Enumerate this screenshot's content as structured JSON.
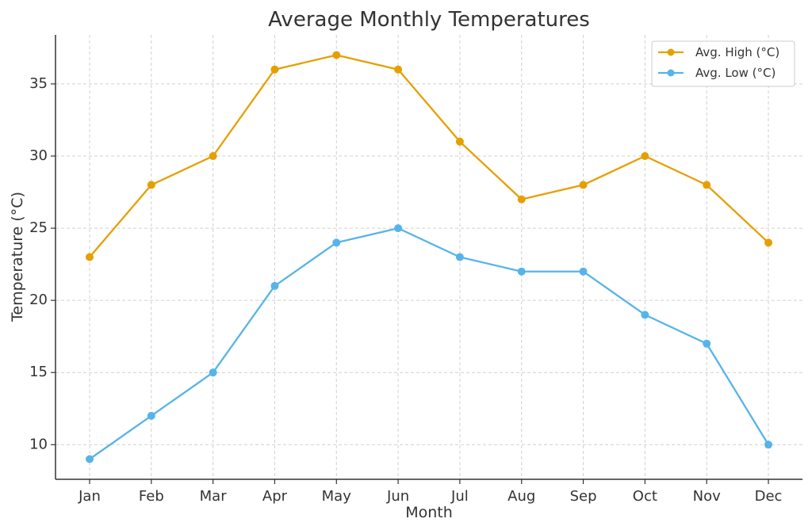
{
  "chart_data": {
    "type": "line",
    "title": "Average Monthly Temperatures",
    "xlabel": "Month",
    "ylabel": "Temperature (°C)",
    "categories": [
      "Jan",
      "Feb",
      "Mar",
      "Apr",
      "May",
      "Jun",
      "Jul",
      "Aug",
      "Sep",
      "Oct",
      "Nov",
      "Dec"
    ],
    "ylim": [
      7.6,
      38.4
    ],
    "yticks": [
      10,
      15,
      20,
      25,
      30,
      35
    ],
    "grid": true,
    "legend_position": "top-right",
    "series": [
      {
        "name": "Avg. High (°C)",
        "color": "#E69F00",
        "values": [
          23,
          28,
          30,
          36,
          37,
          36,
          31,
          27,
          28,
          30,
          28,
          24
        ]
      },
      {
        "name": "Avg. Low (°C)",
        "color": "#56B4E9",
        "values": [
          9,
          12,
          15,
          21,
          24,
          25,
          23,
          22,
          22,
          19,
          17,
          10
        ]
      }
    ]
  }
}
